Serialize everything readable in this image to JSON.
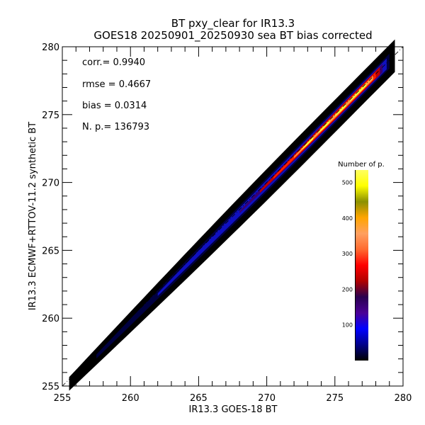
{
  "chart_data": {
    "type": "heatmap",
    "title": "BT pxy_clear for IR13.3",
    "subtitle": "GOES18 20250901_20250930 sea BT bias corrected",
    "xlabel": "IR13.3 GOES-18 BT",
    "ylabel": "IR13.3 ECMWF+RTTOV-11.2 synthetic BT",
    "xlim": [
      255,
      280
    ],
    "ylim": [
      255,
      280
    ],
    "xticks": [
      "255",
      "260",
      "265",
      "270",
      "275",
      "280"
    ],
    "yticks": [
      "255",
      "260",
      "265",
      "270",
      "275",
      "280"
    ],
    "grid": false,
    "reference_line": "y = x (dashed)",
    "stats": {
      "corr": "corr.= 0.9940",
      "rmse": "rmse = 0.4667",
      "bias": "bias = 0.0314",
      "npoints": "N. p.=  136793"
    },
    "colorbar": {
      "label": "Number of p.",
      "range": [
        0,
        535
      ],
      "ticks": [
        "100",
        "200",
        "300",
        "400",
        "500"
      ],
      "colormap": [
        "#000000",
        "#00008a",
        "#0000ff",
        "#4b0096",
        "#2a0050",
        "#b00000",
        "#ff0000",
        "#ff6a30",
        "#ffa060",
        "#ffa500",
        "#8b9000",
        "#ffff00",
        "#ffff60"
      ]
    }
  }
}
